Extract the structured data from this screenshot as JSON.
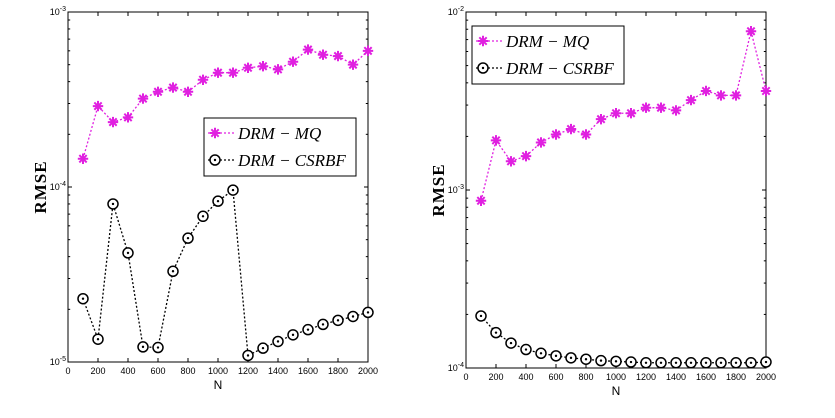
{
  "chart_data": [
    {
      "type": "line",
      "yscale": "log",
      "xlabel": "N",
      "ylabel": "RMSE",
      "xlim": [
        0,
        2000
      ],
      "ylim": [
        1e-05,
        0.001
      ],
      "xticks": [
        "0",
        "200",
        "400",
        "600",
        "800",
        "1000",
        "1200",
        "1400",
        "1600",
        "1800",
        "2000"
      ],
      "yticks": [
        {
          "value": 0.001,
          "base": "10",
          "exp": "-3"
        },
        {
          "value": 0.0001,
          "base": "10",
          "exp": "-4"
        },
        {
          "value": 1e-05,
          "base": "10",
          "exp": "-5"
        }
      ],
      "legend_position": "center-right",
      "x": [
        100,
        200,
        300,
        400,
        500,
        600,
        700,
        800,
        900,
        1000,
        1100,
        1200,
        1300,
        1400,
        1500,
        1600,
        1700,
        1800,
        1900,
        2000
      ],
      "series": [
        {
          "name": "DRM − MQ",
          "marker": "star",
          "color": "#e020e0",
          "values": [
            0.000145,
            0.00029,
            0.000235,
            0.00025,
            0.00032,
            0.00035,
            0.00037,
            0.00035,
            0.00041,
            0.00045,
            0.00045,
            0.00048,
            0.00049,
            0.00047,
            0.00052,
            0.00061,
            0.00057,
            0.00056,
            0.0005,
            0.0006
          ]
        },
        {
          "name": "DRM − CSRBF",
          "marker": "circle",
          "color": "#000000",
          "values": [
            2.3e-05,
            1.35e-05,
            8e-05,
            4.2e-05,
            1.22e-05,
            1.21e-05,
            3.3e-05,
            5.1e-05,
            6.8e-05,
            8.3e-05,
            9.6e-05,
            1.09e-05,
            1.2e-05,
            1.31e-05,
            1.43e-05,
            1.53e-05,
            1.64e-05,
            1.73e-05,
            1.82e-05,
            1.92e-05
          ]
        }
      ]
    },
    {
      "type": "line",
      "yscale": "log",
      "xlabel": "N",
      "ylabel": "RMSE",
      "xlim": [
        0,
        2000
      ],
      "ylim": [
        0.0001,
        0.01
      ],
      "xticks": [
        "0",
        "200",
        "400",
        "600",
        "800",
        "1000",
        "1200",
        "1400",
        "1600",
        "1800",
        "2000"
      ],
      "yticks": [
        {
          "value": 0.01,
          "base": "10",
          "exp": "-2"
        },
        {
          "value": 0.001,
          "base": "10",
          "exp": "-3"
        },
        {
          "value": 0.0001,
          "base": "10",
          "exp": "-4"
        }
      ],
      "legend_position": "top-left",
      "x": [
        100,
        200,
        300,
        400,
        500,
        600,
        700,
        800,
        900,
        1000,
        1100,
        1200,
        1300,
        1400,
        1500,
        1600,
        1700,
        1800,
        1900,
        2000
      ],
      "series": [
        {
          "name": "DRM − MQ",
          "marker": "star",
          "color": "#e020e0",
          "values": [
            0.00087,
            0.0019,
            0.00145,
            0.00155,
            0.00185,
            0.00205,
            0.0022,
            0.00205,
            0.0025,
            0.0027,
            0.0027,
            0.0029,
            0.0029,
            0.0028,
            0.0032,
            0.0036,
            0.0034,
            0.0034,
            0.0078,
            0.0036
          ]
        },
        {
          "name": "DRM − CSRBF",
          "marker": "circle",
          "color": "#000000",
          "values": [
            0.000196,
            0.000158,
            0.000138,
            0.000127,
            0.000121,
            0.000117,
            0.000114,
            0.000112,
            0.00011,
            0.000109,
            0.000108,
            0.000107,
            0.000107,
            0.000107,
            0.000107,
            0.000107,
            0.000107,
            0.000107,
            0.000107,
            0.000108
          ]
        }
      ]
    }
  ]
}
